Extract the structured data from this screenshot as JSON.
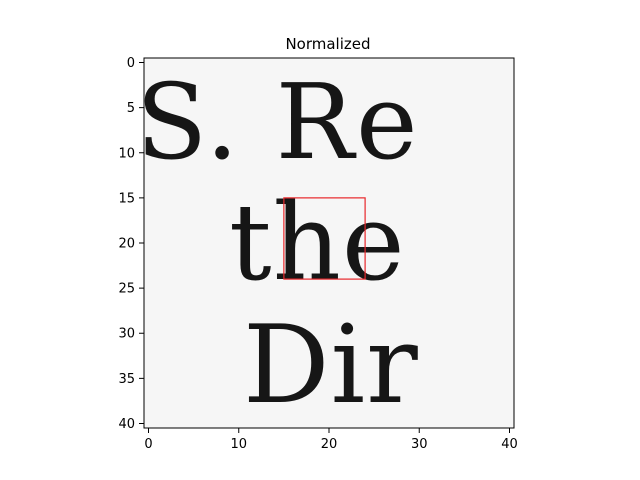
{
  "chart_data": {
    "type": "heatmap",
    "title": "Normalized",
    "xlabel": "",
    "ylabel": "",
    "grid": false,
    "colormap": "gray",
    "x_range": [
      -0.5,
      40.5
    ],
    "y_range": [
      -0.5,
      40.5
    ],
    "y_inverted": true,
    "xticks": [
      0,
      10,
      20,
      30,
      40
    ],
    "yticks": [
      0,
      5,
      10,
      15,
      20,
      25,
      30,
      35,
      40
    ],
    "image_content_text": [
      "S. Re",
      "the",
      "Dir"
    ],
    "highlight_box": {
      "color": "#e8262a",
      "x0": 15,
      "x1": 24,
      "y0": 15,
      "y1": 24
    }
  }
}
